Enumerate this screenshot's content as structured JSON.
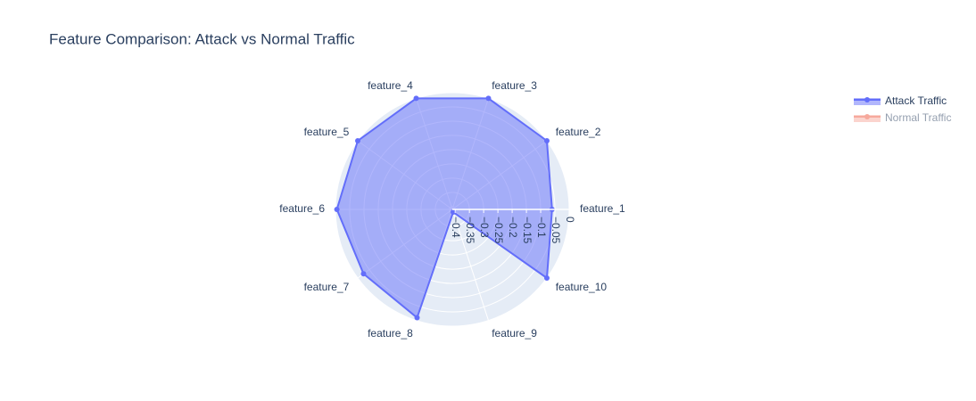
{
  "chart_data": {
    "type": "radar",
    "title": "Feature Comparison: Attack vs Normal Traffic",
    "categories": [
      "feature_1",
      "feature_2",
      "feature_3",
      "feature_4",
      "feature_5",
      "feature_6",
      "feature_7",
      "feature_8",
      "feature_9",
      "feature_10"
    ],
    "series": [
      {
        "name": "Attack Traffic",
        "color": "#636efa",
        "values": [
          -0.06,
          0,
          0,
          0,
          0,
          -0.005,
          -0.025,
          -0.01,
          -0.4,
          0
        ]
      },
      {
        "name": "Normal Traffic",
        "color": "#ef553b",
        "visible": "legendonly"
      }
    ],
    "rlim": [
      -0.41,
      0
    ],
    "rticks": [
      0,
      {
        "value": -0.05,
        "label": "−0.05"
      },
      {
        "value": -0.1,
        "label": "−0.1"
      },
      {
        "value": -0.15,
        "label": "−0.15"
      },
      {
        "value": -0.2,
        "label": "−0.2"
      },
      {
        "value": -0.25,
        "label": "−0.25"
      },
      {
        "value": -0.3,
        "label": "−0.3"
      },
      {
        "value": -0.35,
        "label": "−0.35"
      },
      {
        "value": -0.4,
        "label": "−0.4"
      }
    ],
    "grid": true,
    "legend": "top-right"
  }
}
